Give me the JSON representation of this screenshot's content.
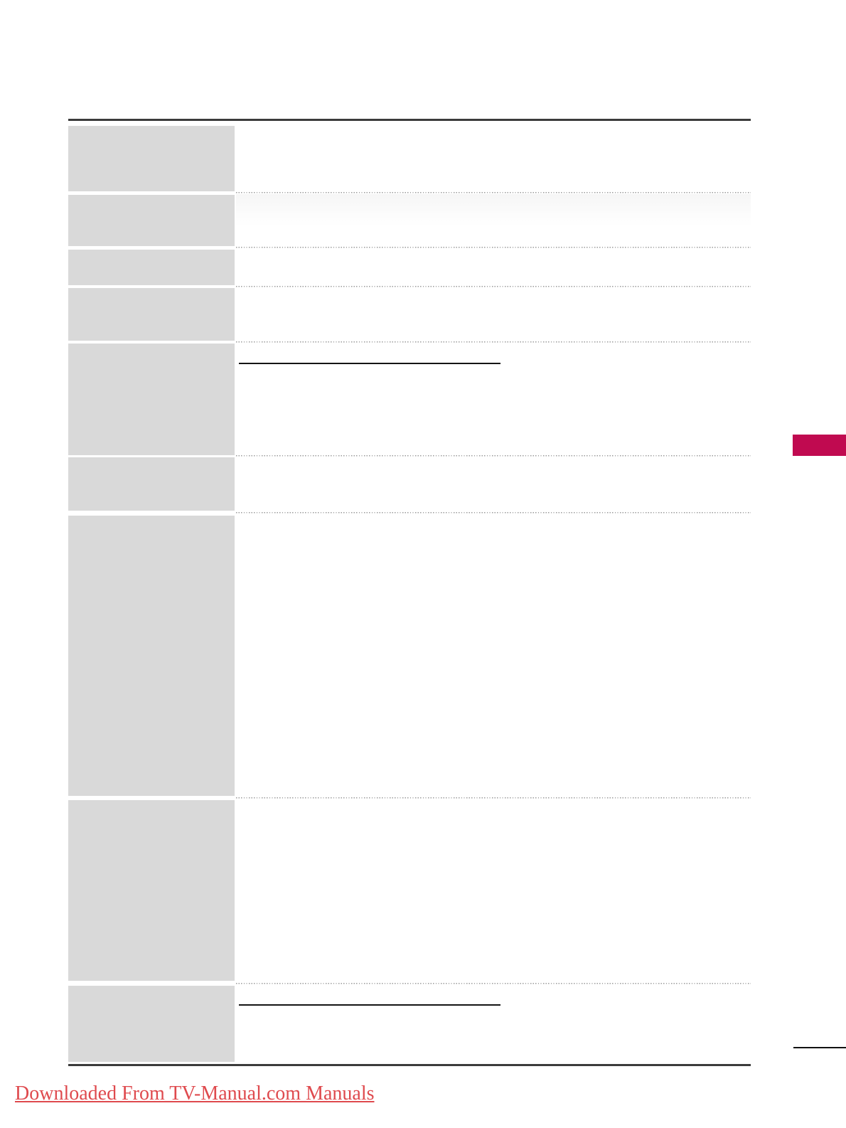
{
  "page": {
    "footer": {
      "link_label": "Downloaded From TV-Manual.com Manuals"
    }
  },
  "colors": {
    "box_gray": "#d9d9d9",
    "rule_color": "#3b3b3b",
    "dot_color": "#9b9b9b",
    "underline_color": "#141414",
    "accent": "#c00a50",
    "link_color": "#df4a4e"
  },
  "table": {
    "rows": [
      {
        "term": "",
        "description": "",
        "has_heading_underline": false
      },
      {
        "term": "",
        "description": "",
        "has_heading_underline": false
      },
      {
        "term": "",
        "description": "",
        "has_heading_underline": false
      },
      {
        "term": "",
        "description": "",
        "has_heading_underline": false
      },
      {
        "term": "",
        "description": "",
        "has_heading_underline": true
      },
      {
        "term": "",
        "description": "",
        "has_heading_underline": false
      },
      {
        "term": "",
        "description": "",
        "has_heading_underline": false
      },
      {
        "term": "",
        "description": "",
        "has_heading_underline": false
      },
      {
        "term": "",
        "description": "",
        "has_heading_underline": true
      }
    ]
  }
}
